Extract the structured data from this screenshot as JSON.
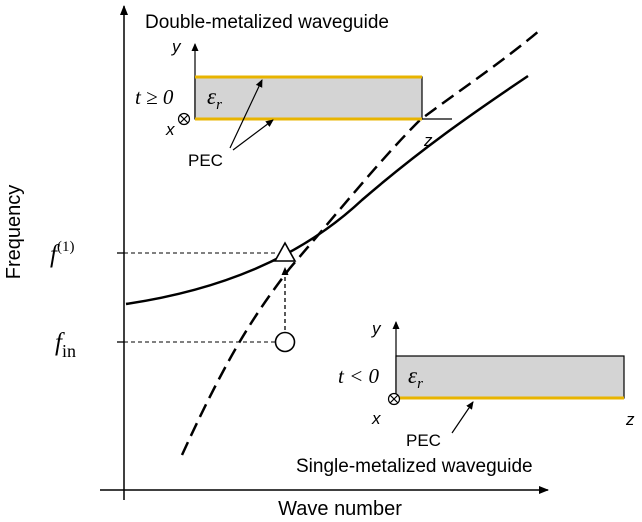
{
  "axes": {
    "xlabel": "Wave number",
    "ylabel": "Frequency"
  },
  "levels": {
    "f1": {
      "base": "f",
      "sup": "(1)"
    },
    "fin": {
      "base": "f",
      "sub": "in"
    }
  },
  "upper_inset": {
    "title": "Double-metalized waveguide",
    "condition": "t ≥ 0",
    "permittivity": {
      "base": "ε",
      "sub": "r"
    },
    "axis_y": "y",
    "axis_x": "x",
    "axis_z": "z",
    "pec_label": "PEC"
  },
  "lower_inset": {
    "title": "Single-metalized waveguide",
    "condition": "t < 0",
    "permittivity": {
      "base": "ε",
      "sub": "r"
    },
    "axis_y": "y",
    "axis_x": "x",
    "axis_z": "z",
    "pec_label": "PEC"
  },
  "colors": {
    "dielectric": "#d4d4d4",
    "pec": "#e8b400",
    "curve": "#000000"
  }
}
